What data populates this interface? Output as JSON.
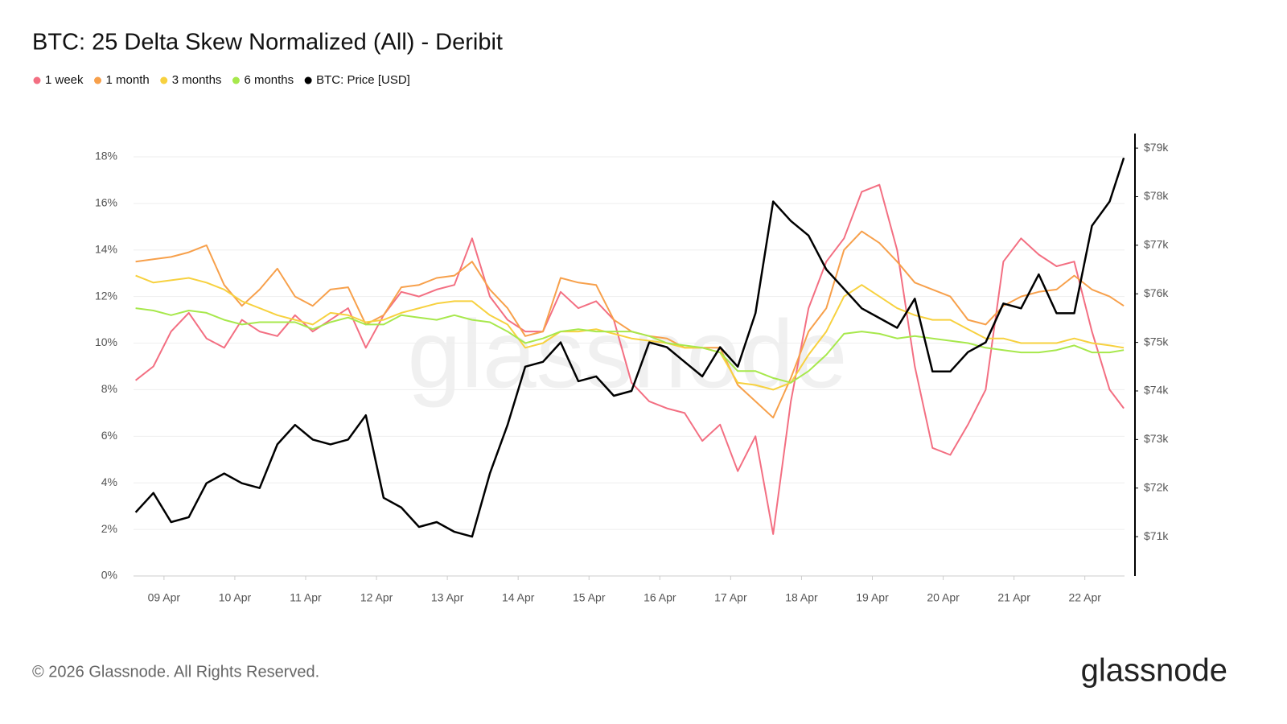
{
  "chart_data": {
    "type": "line",
    "title": "BTC: 25 Delta Skew Normalized (All) - Deribit",
    "watermark": "glassnode",
    "footer": "© 2026 Glassnode. All Rights Reserved.",
    "brand": "glassnode",
    "grid": true,
    "legend": "top-left",
    "x": [
      8.6,
      8.85,
      9.1,
      9.35,
      9.6,
      9.85,
      10.1,
      10.35,
      10.6,
      10.85,
      11.1,
      11.35,
      11.6,
      11.85,
      12.1,
      12.35,
      12.6,
      12.85,
      13.1,
      13.35,
      13.6,
      13.85,
      14.1,
      14.35,
      14.6,
      14.85,
      15.1,
      15.35,
      15.6,
      15.85,
      16.1,
      16.35,
      16.6,
      16.85,
      17.1,
      17.35,
      17.6,
      17.85,
      18.1,
      18.35,
      18.6,
      18.85,
      19.1,
      19.35,
      19.6,
      19.85,
      20.1,
      20.35,
      20.6,
      20.85,
      21.1,
      21.35,
      21.6,
      21.85,
      22.1,
      22.35,
      22.55
    ],
    "xlim": [
      8.57,
      22.56
    ],
    "xticks": [
      {
        "value": 9,
        "label": "09 Apr"
      },
      {
        "value": 10,
        "label": "10 Apr"
      },
      {
        "value": 11,
        "label": "11 Apr"
      },
      {
        "value": 12,
        "label": "12 Apr"
      },
      {
        "value": 13,
        "label": "13 Apr"
      },
      {
        "value": 14,
        "label": "14 Apr"
      },
      {
        "value": 15,
        "label": "15 Apr"
      },
      {
        "value": 16,
        "label": "16 Apr"
      },
      {
        "value": 17,
        "label": "17 Apr"
      },
      {
        "value": 18,
        "label": "18 Apr"
      },
      {
        "value": 19,
        "label": "19 Apr"
      },
      {
        "value": 20,
        "label": "20 Apr"
      },
      {
        "value": 21,
        "label": "21 Apr"
      },
      {
        "value": 22,
        "label": "22 Apr"
      }
    ],
    "ylim": [
      0,
      19
    ],
    "yticks": [
      {
        "value": 0,
        "label": "0%"
      },
      {
        "value": 2,
        "label": "2%"
      },
      {
        "value": 4,
        "label": "4%"
      },
      {
        "value": 6,
        "label": "6%"
      },
      {
        "value": 8,
        "label": "8%"
      },
      {
        "value": 10,
        "label": "10%"
      },
      {
        "value": 12,
        "label": "12%"
      },
      {
        "value": 14,
        "label": "14%"
      },
      {
        "value": 16,
        "label": "16%"
      },
      {
        "value": 18,
        "label": "18%"
      }
    ],
    "y2lim": [
      70190,
      79300
    ],
    "y2ticks": [
      {
        "value": 71000,
        "label": "$71k"
      },
      {
        "value": 72000,
        "label": "$72k"
      },
      {
        "value": 73000,
        "label": "$73k"
      },
      {
        "value": 74000,
        "label": "$74k"
      },
      {
        "value": 75000,
        "label": "$75k"
      },
      {
        "value": 76000,
        "label": "$76k"
      },
      {
        "value": 77000,
        "label": "$77k"
      },
      {
        "value": 78000,
        "label": "$78k"
      },
      {
        "value": 79000,
        "label": "$79k"
      }
    ],
    "series": [
      {
        "name": "1 week",
        "color": "#f36f82",
        "values": [
          8.4,
          9.0,
          10.5,
          11.3,
          10.2,
          9.8,
          11.0,
          10.5,
          10.3,
          11.2,
          10.5,
          11.0,
          11.5,
          9.8,
          11.2,
          12.2,
          12.0,
          12.3,
          12.5,
          14.5,
          12.0,
          11.0,
          10.5,
          10.5,
          12.2,
          11.5,
          11.8,
          11.0,
          8.3,
          7.5,
          7.2,
          7.0,
          5.8,
          6.5,
          4.5,
          6.0,
          1.8,
          7.5,
          11.5,
          13.5,
          14.5,
          16.5,
          16.8,
          14.0,
          9.0,
          5.5,
          5.2,
          6.5,
          8.0,
          13.5,
          14.5,
          13.8,
          13.3,
          13.5,
          10.5,
          8.0,
          7.2
        ]
      },
      {
        "name": "1 month",
        "color": "#f7a04b",
        "values": [
          13.5,
          13.6,
          13.7,
          13.9,
          14.2,
          12.5,
          11.6,
          12.3,
          13.2,
          12.0,
          11.6,
          12.3,
          12.4,
          10.8,
          11.2,
          12.4,
          12.5,
          12.8,
          12.9,
          13.5,
          12.3,
          11.5,
          10.3,
          10.5,
          12.8,
          12.6,
          12.5,
          11.0,
          10.5,
          10.3,
          10.2,
          9.8,
          9.8,
          9.8,
          8.2,
          7.5,
          6.8,
          8.5,
          10.5,
          11.5,
          14.0,
          14.8,
          14.3,
          13.5,
          12.6,
          12.3,
          12.0,
          11.0,
          10.8,
          11.6,
          12.0,
          12.2,
          12.3,
          12.9,
          12.3,
          12.0,
          11.6
        ]
      },
      {
        "name": "3 months",
        "color": "#f7d13f",
        "values": [
          12.9,
          12.6,
          12.7,
          12.8,
          12.6,
          12.3,
          11.8,
          11.5,
          11.2,
          11.0,
          10.8,
          11.3,
          11.2,
          10.9,
          11.0,
          11.3,
          11.5,
          11.7,
          11.8,
          11.8,
          11.2,
          10.8,
          9.8,
          10.0,
          10.5,
          10.5,
          10.6,
          10.4,
          10.2,
          10.1,
          10.0,
          9.8,
          9.8,
          9.6,
          8.3,
          8.2,
          8.0,
          8.3,
          9.5,
          10.5,
          12.0,
          12.5,
          12.0,
          11.5,
          11.2,
          11.0,
          11.0,
          10.6,
          10.2,
          10.2,
          10.0,
          10.0,
          10.0,
          10.2,
          10.0,
          9.9,
          9.8
        ]
      },
      {
        "name": "6 months",
        "color": "#a7e84c",
        "values": [
          11.5,
          11.4,
          11.2,
          11.4,
          11.3,
          11.0,
          10.8,
          10.9,
          10.9,
          10.9,
          10.6,
          10.9,
          11.1,
          10.8,
          10.8,
          11.2,
          11.1,
          11.0,
          11.2,
          11.0,
          10.9,
          10.5,
          10.0,
          10.2,
          10.5,
          10.6,
          10.5,
          10.5,
          10.5,
          10.3,
          10.0,
          9.9,
          9.8,
          9.6,
          8.8,
          8.8,
          8.5,
          8.3,
          8.8,
          9.5,
          10.4,
          10.5,
          10.4,
          10.2,
          10.3,
          10.2,
          10.1,
          10.0,
          9.8,
          9.7,
          9.6,
          9.6,
          9.7,
          9.9,
          9.6,
          9.6,
          9.7
        ]
      },
      {
        "name": "BTC: Price [USD]",
        "color": "#000000",
        "axis": "y2",
        "values": [
          71500,
          71900,
          71300,
          71400,
          72100,
          72300,
          72100,
          72000,
          72900,
          73300,
          73000,
          72900,
          73000,
          73500,
          71800,
          71600,
          71200,
          71300,
          71100,
          71000,
          72300,
          73300,
          74500,
          74600,
          75000,
          74200,
          74300,
          73900,
          74000,
          75000,
          74900,
          74600,
          74300,
          74900,
          74500,
          75600,
          77900,
          77500,
          77200,
          76500,
          76100,
          75700,
          75500,
          75300,
          75900,
          74400,
          74400,
          74800,
          75000,
          75800,
          75700,
          76400,
          75600,
          75600,
          77400,
          77900,
          78800
        ]
      }
    ]
  }
}
